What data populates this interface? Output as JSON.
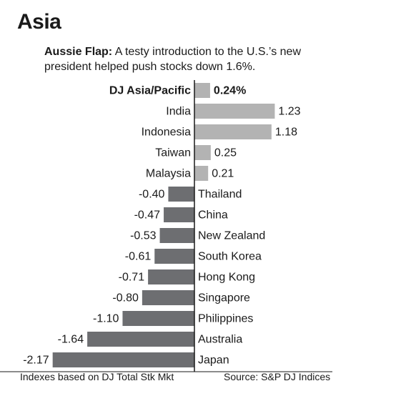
{
  "section": {
    "title": "Asia"
  },
  "headline": {
    "lead": "Aussie Flap:",
    "text": "A testy introduction to the U.S.’s new president helped push stocks down 1.6%."
  },
  "footer": {
    "note": "Indexes based on DJ Total Stk Mkt",
    "source": "Source: S&P DJ Indices"
  },
  "colors": {
    "positive_bar": "#b3b3b3",
    "negative_bar": "#6d6e71",
    "axis": "#1a1a1a",
    "text": "#1a1a1a"
  },
  "chart_data": {
    "type": "bar",
    "orientation": "horizontal",
    "title": "",
    "xlabel": "",
    "ylabel": "",
    "categories": [
      "DJ Asia/Pacific",
      "India",
      "Indonesia",
      "Taiwan",
      "Malaysia",
      "Thailand",
      "China",
      "New Zealand",
      "South Korea",
      "Hong Kong",
      "Singapore",
      "Philippines",
      "Australia",
      "Japan"
    ],
    "values": [
      0.24,
      1.23,
      1.18,
      0.25,
      0.21,
      -0.4,
      -0.47,
      -0.53,
      -0.61,
      -0.71,
      -0.8,
      -1.1,
      -1.64,
      -2.17
    ],
    "value_labels": [
      "0.24%",
      "1.23",
      "1.18",
      "0.25",
      "0.21",
      "-0.40",
      "-0.47",
      "-0.53",
      "-0.61",
      "-0.71",
      "-0.80",
      "-1.10",
      "-1.64",
      "-2.17"
    ],
    "emphasized": [
      true,
      false,
      false,
      false,
      false,
      false,
      false,
      false,
      false,
      false,
      false,
      false,
      false,
      false
    ],
    "xlim": [
      -2.17,
      1.23
    ],
    "grid": false,
    "legend": "none"
  }
}
